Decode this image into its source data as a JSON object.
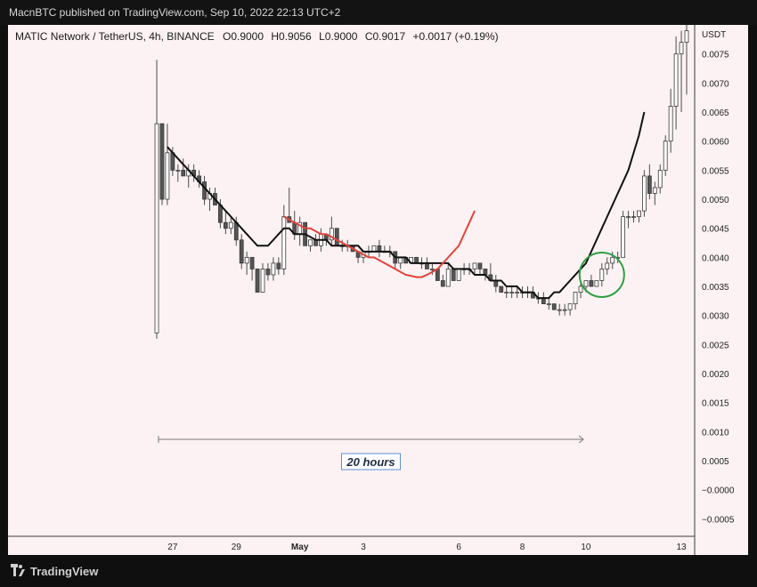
{
  "header": {
    "published": "MacnBTC published on TradingView.com, Sep 10, 2022 22:13 UTC+2"
  },
  "footer": {
    "brand": "TradingView"
  },
  "colors": {
    "background": "#fdf2f3",
    "ema_fast": "#111111",
    "ema_slow": "#e0443b",
    "circle": "#2ea043",
    "candle": "#555555"
  },
  "chart_data": {
    "type": "candlestick",
    "title": "MATIC Network / TetherUS, 4h, BINANCE",
    "ohlc_readout": {
      "o_label": "O",
      "o": "0.9000",
      "h_label": "H",
      "h": "0.9056",
      "l_label": "L",
      "l": "0.9000",
      "c_label": "C",
      "c": "0.9017",
      "change": "+0.0017 (+0.19%)"
    },
    "currency": "USDT",
    "ylim": [
      -0.0008,
      0.008
    ],
    "y_ticks": [
      "0.0075",
      "0.0070",
      "0.0065",
      "0.0060",
      "0.0055",
      "0.0050",
      "0.0045",
      "0.0040",
      "0.0035",
      "0.0030",
      "0.0025",
      "0.0020",
      "0.0015",
      "0.0010",
      "0.0005",
      "−0.0000",
      "−0.0005"
    ],
    "y_tick_values": [
      0.0075,
      0.007,
      0.0065,
      0.006,
      0.0055,
      0.005,
      0.0045,
      0.004,
      0.0035,
      0.003,
      0.0025,
      0.002,
      0.0015,
      0.001,
      0.0005,
      0.0,
      -0.0005
    ],
    "x_ticks": [
      {
        "label": "27",
        "bar": 3
      },
      {
        "label": "29",
        "bar": 15
      },
      {
        "label": "May",
        "bar": 27
      },
      {
        "label": "3",
        "bar": 39
      },
      {
        "label": "6",
        "bar": 57
      },
      {
        "label": "8",
        "bar": 69
      },
      {
        "label": "10",
        "bar": 81
      },
      {
        "label": "13",
        "bar": 99
      }
    ],
    "candles": [
      [
        0.0027,
        0.0074,
        0.0026,
        0.0063
      ],
      [
        0.0063,
        0.0063,
        0.0049,
        0.005
      ],
      [
        0.005,
        0.0063,
        0.0049,
        0.0058
      ],
      [
        0.0058,
        0.0059,
        0.0054,
        0.0055
      ],
      [
        0.0055,
        0.0056,
        0.0053,
        0.0055
      ],
      [
        0.0055,
        0.0057,
        0.0054,
        0.0054
      ],
      [
        0.0054,
        0.0056,
        0.0052,
        0.0055
      ],
      [
        0.0055,
        0.0056,
        0.0053,
        0.0054
      ],
      [
        0.0054,
        0.0055,
        0.0052,
        0.0053
      ],
      [
        0.0053,
        0.0054,
        0.0049,
        0.005
      ],
      [
        0.005,
        0.0052,
        0.0048,
        0.0051
      ],
      [
        0.0051,
        0.0052,
        0.0049,
        0.0049
      ],
      [
        0.0049,
        0.005,
        0.0045,
        0.0046
      ],
      [
        0.0046,
        0.0048,
        0.0044,
        0.0045
      ],
      [
        0.0045,
        0.0047,
        0.0044,
        0.0046
      ],
      [
        0.0046,
        0.0047,
        0.0042,
        0.0043
      ],
      [
        0.0043,
        0.0044,
        0.0038,
        0.0039
      ],
      [
        0.0039,
        0.0041,
        0.0037,
        0.004
      ],
      [
        0.004,
        0.004,
        0.0036,
        0.0038
      ],
      [
        0.0038,
        0.0038,
        0.0034,
        0.0034
      ],
      [
        0.0034,
        0.0039,
        0.0034,
        0.0038
      ],
      [
        0.0038,
        0.0039,
        0.0036,
        0.0037
      ],
      [
        0.0037,
        0.004,
        0.0036,
        0.0039
      ],
      [
        0.0039,
        0.004,
        0.0037,
        0.0038
      ],
      [
        0.0038,
        0.0049,
        0.0037,
        0.0047
      ],
      [
        0.0047,
        0.0052,
        0.0046,
        0.0046
      ],
      [
        0.0046,
        0.0048,
        0.0043,
        0.0044
      ],
      [
        0.0044,
        0.0047,
        0.0042,
        0.0046
      ],
      [
        0.0046,
        0.0046,
        0.0042,
        0.0042
      ],
      [
        0.0042,
        0.0043,
        0.0041,
        0.0043
      ],
      [
        0.0043,
        0.0044,
        0.0042,
        0.0042
      ],
      [
        0.0042,
        0.0045,
        0.0041,
        0.0044
      ],
      [
        0.0044,
        0.0044,
        0.0042,
        0.0043
      ],
      [
        0.0043,
        0.0047,
        0.0042,
        0.0045
      ],
      [
        0.0045,
        0.0045,
        0.0042,
        0.0042
      ],
      [
        0.0042,
        0.0043,
        0.0041,
        0.0042
      ],
      [
        0.0042,
        0.0043,
        0.0041,
        0.0042
      ],
      [
        0.0042,
        0.0042,
        0.0041,
        0.0041
      ],
      [
        0.0041,
        0.0041,
        0.0039,
        0.004
      ],
      [
        0.004,
        0.0041,
        0.0039,
        0.0041
      ],
      [
        0.0041,
        0.0042,
        0.004,
        0.0041
      ],
      [
        0.0041,
        0.0042,
        0.0041,
        0.0042
      ],
      [
        0.0042,
        0.0043,
        0.004,
        0.0041
      ],
      [
        0.0041,
        0.0042,
        0.0041,
        0.0041
      ],
      [
        0.0041,
        0.0042,
        0.004,
        0.0041
      ],
      [
        0.0041,
        0.0041,
        0.0038,
        0.0039
      ],
      [
        0.0039,
        0.004,
        0.0038,
        0.004
      ],
      [
        0.004,
        0.004,
        0.0039,
        0.0039
      ],
      [
        0.0039,
        0.004,
        0.0039,
        0.004
      ],
      [
        0.004,
        0.004,
        0.0039,
        0.0039
      ],
      [
        0.0039,
        0.004,
        0.0038,
        0.0039
      ],
      [
        0.0039,
        0.004,
        0.0038,
        0.0038
      ],
      [
        0.0038,
        0.0039,
        0.0037,
        0.0038
      ],
      [
        0.0038,
        0.0038,
        0.0036,
        0.0036
      ],
      [
        0.0036,
        0.0037,
        0.0035,
        0.0035
      ],
      [
        0.0035,
        0.0039,
        0.0035,
        0.0038
      ],
      [
        0.0038,
        0.0038,
        0.0036,
        0.0036
      ],
      [
        0.0036,
        0.0038,
        0.0036,
        0.0038
      ],
      [
        0.0038,
        0.0039,
        0.0037,
        0.0038
      ],
      [
        0.0038,
        0.0039,
        0.0037,
        0.0038
      ],
      [
        0.0038,
        0.0039,
        0.0037,
        0.0039
      ],
      [
        0.0039,
        0.0039,
        0.0037,
        0.0038
      ],
      [
        0.0038,
        0.0038,
        0.0036,
        0.0037
      ],
      [
        0.0037,
        0.0039,
        0.0036,
        0.0036
      ],
      [
        0.0036,
        0.0037,
        0.0034,
        0.0035
      ],
      [
        0.0035,
        0.0035,
        0.0034,
        0.0034
      ],
      [
        0.0034,
        0.0035,
        0.0033,
        0.0034
      ],
      [
        0.0034,
        0.0035,
        0.0033,
        0.0034
      ],
      [
        0.0034,
        0.0035,
        0.0033,
        0.0034
      ],
      [
        0.0034,
        0.0035,
        0.0033,
        0.0034
      ],
      [
        0.0034,
        0.0035,
        0.0033,
        0.0034
      ],
      [
        0.0034,
        0.0035,
        0.0033,
        0.0033
      ],
      [
        0.0033,
        0.0034,
        0.0032,
        0.0033
      ],
      [
        0.0033,
        0.0034,
        0.0032,
        0.0032
      ],
      [
        0.0032,
        0.0033,
        0.0031,
        0.0032
      ],
      [
        0.0032,
        0.0032,
        0.0031,
        0.0031
      ],
      [
        0.0031,
        0.0032,
        0.003,
        0.0031
      ],
      [
        0.0031,
        0.0032,
        0.003,
        0.0031
      ],
      [
        0.0031,
        0.0032,
        0.003,
        0.0032
      ],
      [
        0.0032,
        0.0034,
        0.0031,
        0.0034
      ],
      [
        0.0034,
        0.0036,
        0.0033,
        0.0035
      ],
      [
        0.0035,
        0.0036,
        0.0034,
        0.0036
      ],
      [
        0.0036,
        0.0037,
        0.0035,
        0.0035
      ],
      [
        0.0035,
        0.0036,
        0.0035,
        0.0036
      ],
      [
        0.0036,
        0.0039,
        0.0035,
        0.0038
      ],
      [
        0.0038,
        0.004,
        0.0037,
        0.0039
      ],
      [
        0.0039,
        0.0041,
        0.0038,
        0.004
      ],
      [
        0.004,
        0.0041,
        0.0039,
        0.004
      ],
      [
        0.004,
        0.0048,
        0.004,
        0.0047
      ],
      [
        0.0047,
        0.0048,
        0.0045,
        0.0047
      ],
      [
        0.0047,
        0.0048,
        0.0046,
        0.0047
      ],
      [
        0.0047,
        0.0048,
        0.0046,
        0.0048
      ],
      [
        0.0048,
        0.0055,
        0.0047,
        0.0054
      ],
      [
        0.0054,
        0.0056,
        0.005,
        0.0051
      ],
      [
        0.0051,
        0.0053,
        0.0049,
        0.0052
      ],
      [
        0.0052,
        0.0056,
        0.0051,
        0.0055
      ],
      [
        0.0055,
        0.0061,
        0.0054,
        0.006
      ],
      [
        0.006,
        0.0069,
        0.0058,
        0.0066
      ],
      [
        0.0066,
        0.0078,
        0.0062,
        0.0075
      ],
      [
        0.0075,
        0.0079,
        0.0065,
        0.0077
      ],
      [
        0.0077,
        0.008,
        0.0068,
        0.0079
      ]
    ],
    "series": [
      {
        "color": "#111111",
        "start": 2,
        "values": [
          0.0059,
          0.0058,
          0.0057,
          0.0056,
          0.0055,
          0.0054,
          0.0053,
          0.0052,
          0.0051,
          0.005,
          0.0049,
          0.0048,
          0.0047,
          0.0046,
          0.0045,
          0.0044,
          0.0043,
          0.0042,
          0.0042,
          0.0042,
          0.0043,
          0.0044,
          0.0045,
          0.0045,
          0.0044,
          0.0044,
          0.0044,
          0.00435,
          0.0043,
          0.0043,
          0.0043,
          0.0042,
          0.0042,
          0.0042,
          0.0042,
          0.0042,
          0.0042,
          0.0041,
          0.0041,
          0.0041,
          0.0041,
          0.0041,
          0.0041,
          0.004,
          0.004,
          0.004,
          0.0039,
          0.0039,
          0.0039,
          0.0039,
          0.0039,
          0.0039,
          0.0039,
          0.0039,
          0.0038,
          0.0038,
          0.0038,
          0.0038,
          0.0037,
          0.0037,
          0.0037,
          0.0036,
          0.0036,
          0.0036,
          0.0035,
          0.0035,
          0.0035,
          0.0034,
          0.0034,
          0.0034,
          0.0033,
          0.0033,
          0.0033,
          0.0034,
          0.0034,
          0.0035,
          0.0036,
          0.0037,
          0.0038,
          0.0039,
          0.0041,
          0.0043,
          0.0045,
          0.0047,
          0.0049,
          0.0051,
          0.0053,
          0.0055,
          0.0058,
          0.0061,
          0.0065
        ]
      },
      {
        "color": "#e0443b",
        "start": 24,
        "values": [
          0.0047,
          0.00465,
          0.0046,
          0.00455,
          0.0045,
          0.0045,
          0.00445,
          0.0044,
          0.0044,
          0.00435,
          0.0043,
          0.00425,
          0.0042,
          0.00415,
          0.0041,
          0.00405,
          0.004,
          0.004,
          0.00395,
          0.0039,
          0.00385,
          0.0038,
          0.00375,
          0.0037,
          0.00368,
          0.00366,
          0.00366,
          0.0037,
          0.00375,
          0.0038,
          0.0039,
          0.004,
          0.0041,
          0.0042,
          0.0044,
          0.0046,
          0.0048
        ]
      }
    ],
    "annotations": {
      "range_label": "20 hours",
      "range_start_bar": 1,
      "range_end_bar": 80,
      "circle_bar": 84,
      "circle_value": 0.0037
    }
  }
}
